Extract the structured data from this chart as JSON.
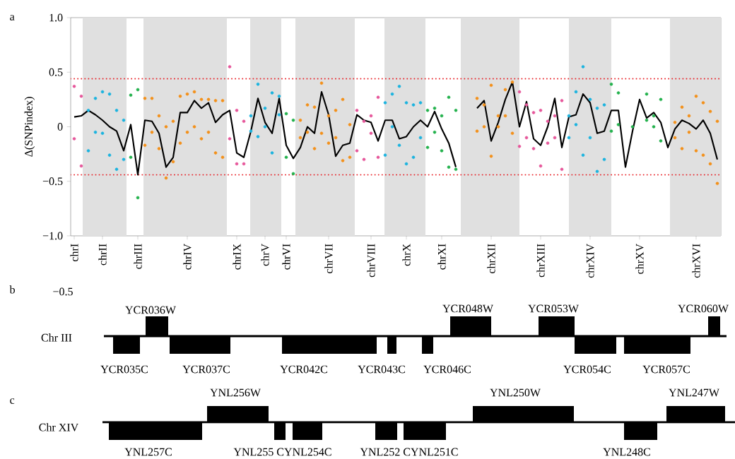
{
  "chart_data": [
    {
      "type": "scatter",
      "title": "a",
      "ylabel": "Δ(SNPindex)",
      "ylim": [
        -1,
        1
      ],
      "marker": "circle",
      "categories": [
        "chrI",
        null,
        null,
        null,
        "chrII",
        null,
        null,
        null,
        null,
        "chrIII",
        null,
        null,
        null,
        null,
        null,
        null,
        "chrIV",
        null,
        null,
        null,
        null,
        null,
        null,
        "chrIX",
        null,
        null,
        null,
        "chrV",
        null,
        null,
        "chrVI",
        null,
        null,
        null,
        null,
        null,
        "chrVII",
        null,
        null,
        null,
        null,
        null,
        "chrVIII",
        null,
        null,
        null,
        null,
        "chrX",
        null,
        null,
        null,
        null,
        "chrXI",
        null,
        null,
        null,
        null,
        null,
        null,
        "chrXII",
        null,
        null,
        null,
        null,
        null,
        null,
        "chrXIII",
        null,
        null,
        null,
        null,
        null,
        null,
        "chrXIV",
        null,
        null,
        null,
        null,
        null,
        null,
        "chrXV",
        null,
        null,
        null,
        null,
        null,
        null,
        null,
        "chrXVI",
        null,
        null,
        null
      ],
      "yticks": [
        {
          "value": -1,
          "label": "−1.0"
        },
        {
          "value": -0.5,
          "label": "−0.5"
        },
        0,
        0.5,
        {
          "value": 1,
          "label": "1.0"
        }
      ],
      "ref_lines": [
        {
          "axis": "y",
          "value": 0.44,
          "color": "#e8242a",
          "line_style": "dotted"
        },
        {
          "axis": "y",
          "value": -0.44,
          "color": "#e8242a",
          "line_style": "dotted"
        }
      ],
      "series": [
        {
          "color": "#e6569a",
          "values": [
            0.37,
            0.28,
            null,
            null,
            null,
            null,
            null,
            null,
            null,
            null,
            null,
            null,
            null,
            null,
            null,
            null,
            null,
            null,
            null,
            null,
            null,
            null,
            0.55,
            0.15,
            0.05,
            null,
            null,
            null,
            null,
            null,
            null,
            null,
            null,
            null,
            null,
            null,
            null,
            null,
            null,
            null,
            0.15,
            0.05,
            0.1,
            0.27,
            null,
            null,
            null,
            null,
            null,
            null,
            null,
            null,
            null,
            null,
            null,
            null,
            null,
            null,
            null,
            null,
            null,
            null,
            null,
            0.32,
            0.2,
            0.13,
            0.15,
            0.05,
            0.1,
            0.24,
            null,
            null,
            null,
            null,
            null,
            null,
            null,
            null,
            null,
            null,
            null,
            null,
            null,
            null,
            null,
            null,
            null,
            null,
            null,
            null,
            null,
            null
          ]
        },
        {
          "color": "#e6569a",
          "values": [
            -0.11,
            -0.36,
            null,
            null,
            null,
            null,
            null,
            null,
            null,
            null,
            null,
            null,
            null,
            null,
            null,
            null,
            null,
            null,
            null,
            null,
            null,
            null,
            -0.11,
            -0.34,
            -0.34,
            null,
            null,
            null,
            null,
            null,
            null,
            null,
            null,
            null,
            null,
            null,
            null,
            null,
            null,
            null,
            -0.22,
            -0.3,
            -0.06,
            -0.28,
            null,
            null,
            null,
            null,
            null,
            null,
            null,
            null,
            null,
            null,
            null,
            null,
            null,
            null,
            null,
            null,
            null,
            null,
            null,
            -0.18,
            -0.1,
            -0.2,
            -0.36,
            -0.15,
            -0.1,
            -0.39,
            null,
            null,
            null,
            null,
            null,
            null,
            null,
            null,
            null,
            null,
            null,
            null,
            null,
            null,
            null,
            null,
            null,
            null,
            null,
            null,
            null,
            null
          ]
        },
        {
          "color": "#1bb3df",
          "values": [
            null,
            null,
            0.15,
            0.26,
            0.32,
            0.3,
            0.15,
            0.06,
            null,
            null,
            null,
            null,
            null,
            null,
            null,
            null,
            null,
            null,
            null,
            null,
            null,
            null,
            null,
            null,
            null,
            0.1,
            0.39,
            0.17,
            0.31,
            0.28,
            null,
            null,
            null,
            null,
            null,
            null,
            null,
            null,
            null,
            null,
            null,
            null,
            null,
            null,
            0.22,
            0.3,
            0.37,
            0.22,
            0.2,
            0.22,
            null,
            null,
            null,
            null,
            null,
            null,
            null,
            null,
            null,
            null,
            null,
            null,
            null,
            null,
            null,
            null,
            null,
            null,
            null,
            null,
            0.1,
            0.32,
            0.55,
            0.25,
            0.17,
            0.2,
            null,
            null,
            null,
            null,
            null,
            null,
            null,
            null,
            null,
            null,
            null,
            null,
            null,
            null,
            null,
            null
          ]
        },
        {
          "color": "#1bb3df",
          "values": [
            null,
            null,
            -0.22,
            -0.05,
            -0.06,
            -0.26,
            -0.39,
            -0.3,
            null,
            null,
            null,
            null,
            null,
            null,
            null,
            null,
            null,
            null,
            null,
            null,
            null,
            null,
            null,
            null,
            null,
            -0.04,
            -0.09,
            0,
            -0.24,
            0.11,
            null,
            null,
            null,
            null,
            null,
            null,
            null,
            null,
            null,
            null,
            null,
            null,
            null,
            null,
            -0.26,
            0,
            -0.17,
            -0.34,
            -0.28,
            -0.1,
            null,
            null,
            null,
            null,
            null,
            null,
            null,
            null,
            null,
            null,
            null,
            null,
            null,
            null,
            null,
            null,
            null,
            null,
            null,
            null,
            -0.1,
            0.02,
            -0.26,
            -0.1,
            -0.41,
            -0.3,
            null,
            null,
            null,
            null,
            null,
            null,
            null,
            null,
            null,
            null,
            null,
            null,
            null,
            null,
            null,
            null
          ]
        },
        {
          "color": "#22b14c",
          "values": [
            null,
            null,
            null,
            null,
            null,
            null,
            null,
            null,
            0.29,
            0.34,
            null,
            null,
            null,
            null,
            null,
            null,
            null,
            null,
            null,
            null,
            null,
            null,
            null,
            null,
            null,
            null,
            null,
            null,
            null,
            null,
            0.12,
            0.06,
            null,
            null,
            null,
            null,
            null,
            null,
            null,
            null,
            null,
            null,
            null,
            null,
            null,
            null,
            null,
            null,
            null,
            null,
            0.15,
            0.17,
            0.1,
            0.27,
            0.15,
            null,
            null,
            null,
            null,
            null,
            null,
            null,
            null,
            null,
            null,
            null,
            null,
            null,
            null,
            null,
            null,
            null,
            null,
            null,
            null,
            null,
            0.39,
            0.31,
            null,
            0,
            null,
            0.3,
            0.1,
            0.25,
            null,
            null,
            null,
            null,
            null,
            null,
            null,
            null
          ]
        },
        {
          "color": "#22b14c",
          "values": [
            null,
            null,
            null,
            null,
            null,
            null,
            null,
            null,
            -0.28,
            -0.65,
            null,
            null,
            null,
            null,
            null,
            null,
            null,
            null,
            null,
            null,
            null,
            null,
            null,
            null,
            null,
            null,
            null,
            null,
            null,
            null,
            -0.28,
            -0.43,
            null,
            null,
            null,
            null,
            null,
            null,
            null,
            null,
            null,
            null,
            null,
            null,
            null,
            null,
            null,
            null,
            null,
            null,
            -0.19,
            -0.05,
            -0.22,
            -0.37,
            -0.39,
            null,
            null,
            null,
            null,
            null,
            null,
            null,
            null,
            null,
            null,
            null,
            null,
            null,
            null,
            null,
            null,
            null,
            null,
            null,
            null,
            null,
            -0.04,
            0.02,
            null,
            null,
            null,
            0.06,
            0,
            -0.13,
            null,
            null,
            null,
            null,
            null,
            null,
            null,
            null
          ]
        },
        {
          "color": "#f39019",
          "values": [
            null,
            null,
            null,
            null,
            null,
            null,
            null,
            null,
            null,
            null,
            0.26,
            0.26,
            0.1,
            0,
            0.05,
            0.28,
            0.3,
            0.32,
            0.25,
            0.25,
            0.24,
            0.24,
            null,
            null,
            null,
            null,
            null,
            null,
            null,
            null,
            null,
            null,
            0.06,
            0.2,
            0.18,
            0.4,
            0.1,
            0.15,
            0.25,
            0.02,
            null,
            null,
            null,
            null,
            null,
            null,
            null,
            null,
            null,
            null,
            null,
            null,
            null,
            null,
            null,
            null,
            null,
            0.26,
            0.2,
            0.38,
            0.1,
            0.34,
            0.41,
            null,
            null,
            null,
            null,
            null,
            null,
            null,
            null,
            null,
            null,
            null,
            null,
            null,
            null,
            null,
            null,
            null,
            null,
            null,
            null,
            null,
            null,
            0.04,
            0.18,
            0.1,
            0.28,
            0.22,
            0.14,
            0.05
          ]
        },
        {
          "color": "#f39019",
          "values": [
            null,
            null,
            null,
            null,
            null,
            null,
            null,
            null,
            null,
            null,
            -0.17,
            -0.05,
            -0.2,
            -0.47,
            -0.32,
            -0.15,
            -0.05,
            0,
            -0.11,
            -0.05,
            -0.24,
            -0.28,
            null,
            null,
            null,
            null,
            null,
            null,
            null,
            null,
            null,
            null,
            -0.1,
            -0.05,
            -0.2,
            -0.06,
            -0.15,
            -0.1,
            -0.31,
            -0.28,
            null,
            null,
            null,
            null,
            null,
            null,
            null,
            null,
            null,
            null,
            null,
            null,
            null,
            null,
            null,
            null,
            null,
            -0.04,
            0,
            -0.27,
            0,
            0.1,
            -0.06,
            null,
            null,
            null,
            null,
            null,
            null,
            null,
            null,
            null,
            null,
            null,
            null,
            null,
            null,
            null,
            null,
            null,
            null,
            null,
            null,
            null,
            null,
            -0.1,
            -0.2,
            -0.05,
            -0.22,
            -0.26,
            -0.34,
            -0.52
          ]
        },
        {
          "type": "line",
          "marker": "none",
          "color": "#000000",
          "values": [
            0.09,
            0.1,
            0.15,
            0.11,
            0.06,
            0,
            -0.04,
            -0.22,
            0.02,
            -0.44,
            0.06,
            0.05,
            -0.06,
            -0.37,
            -0.28,
            0.13,
            0.13,
            0.24,
            0.17,
            0.22,
            0.04,
            0.11,
            0.15,
            -0.24,
            -0.28,
            -0.04,
            0.26,
            0.04,
            -0.06,
            0.26,
            -0.17,
            -0.29,
            -0.19,
            0,
            -0.06,
            0.32,
            0.11,
            -0.27,
            -0.17,
            -0.15,
            0.11,
            0.06,
            0.04,
            -0.13,
            0.06,
            0.06,
            -0.11,
            -0.09,
            0,
            0.06,
            0,
            0.14,
            -0.02,
            -0.15,
            -0.37,
            null,
            null,
            0.17,
            0.24,
            -0.13,
            0.04,
            0.25,
            0.41,
            0,
            0.23,
            -0.11,
            -0.17,
            0,
            0.26,
            -0.19,
            0.09,
            0.11,
            0.3,
            0.22,
            -0.06,
            -0.04,
            0.15,
            0.15,
            -0.37,
            -0.04,
            0.25,
            0.08,
            0.13,
            0.04,
            -0.19,
            -0.02,
            0.06,
            0.03,
            -0.02,
            0.06,
            -0.06,
            -0.3
          ]
        }
      ]
    },
    {
      "type": "other",
      "title": "b",
      "ylabel": "Chr III",
      "annotations": [
        "−0.5",
        "YCR035C",
        "YCR036W",
        "YCR037C",
        "YCR042C",
        "YCR043C",
        "YCR046C",
        "YCR048W",
        "YCR053W",
        "YCR054C",
        "YCR057C",
        "YCR060W"
      ]
    },
    {
      "type": "other",
      "title": "c",
      "ylabel": "Chr XIV",
      "annotations": [
        "YNL257C",
        "YNL256W",
        "YNL255 CYNL254C",
        "YNL252 CYNL251C",
        "YNL250W",
        "YNL248C",
        "YNL247W"
      ]
    }
  ]
}
